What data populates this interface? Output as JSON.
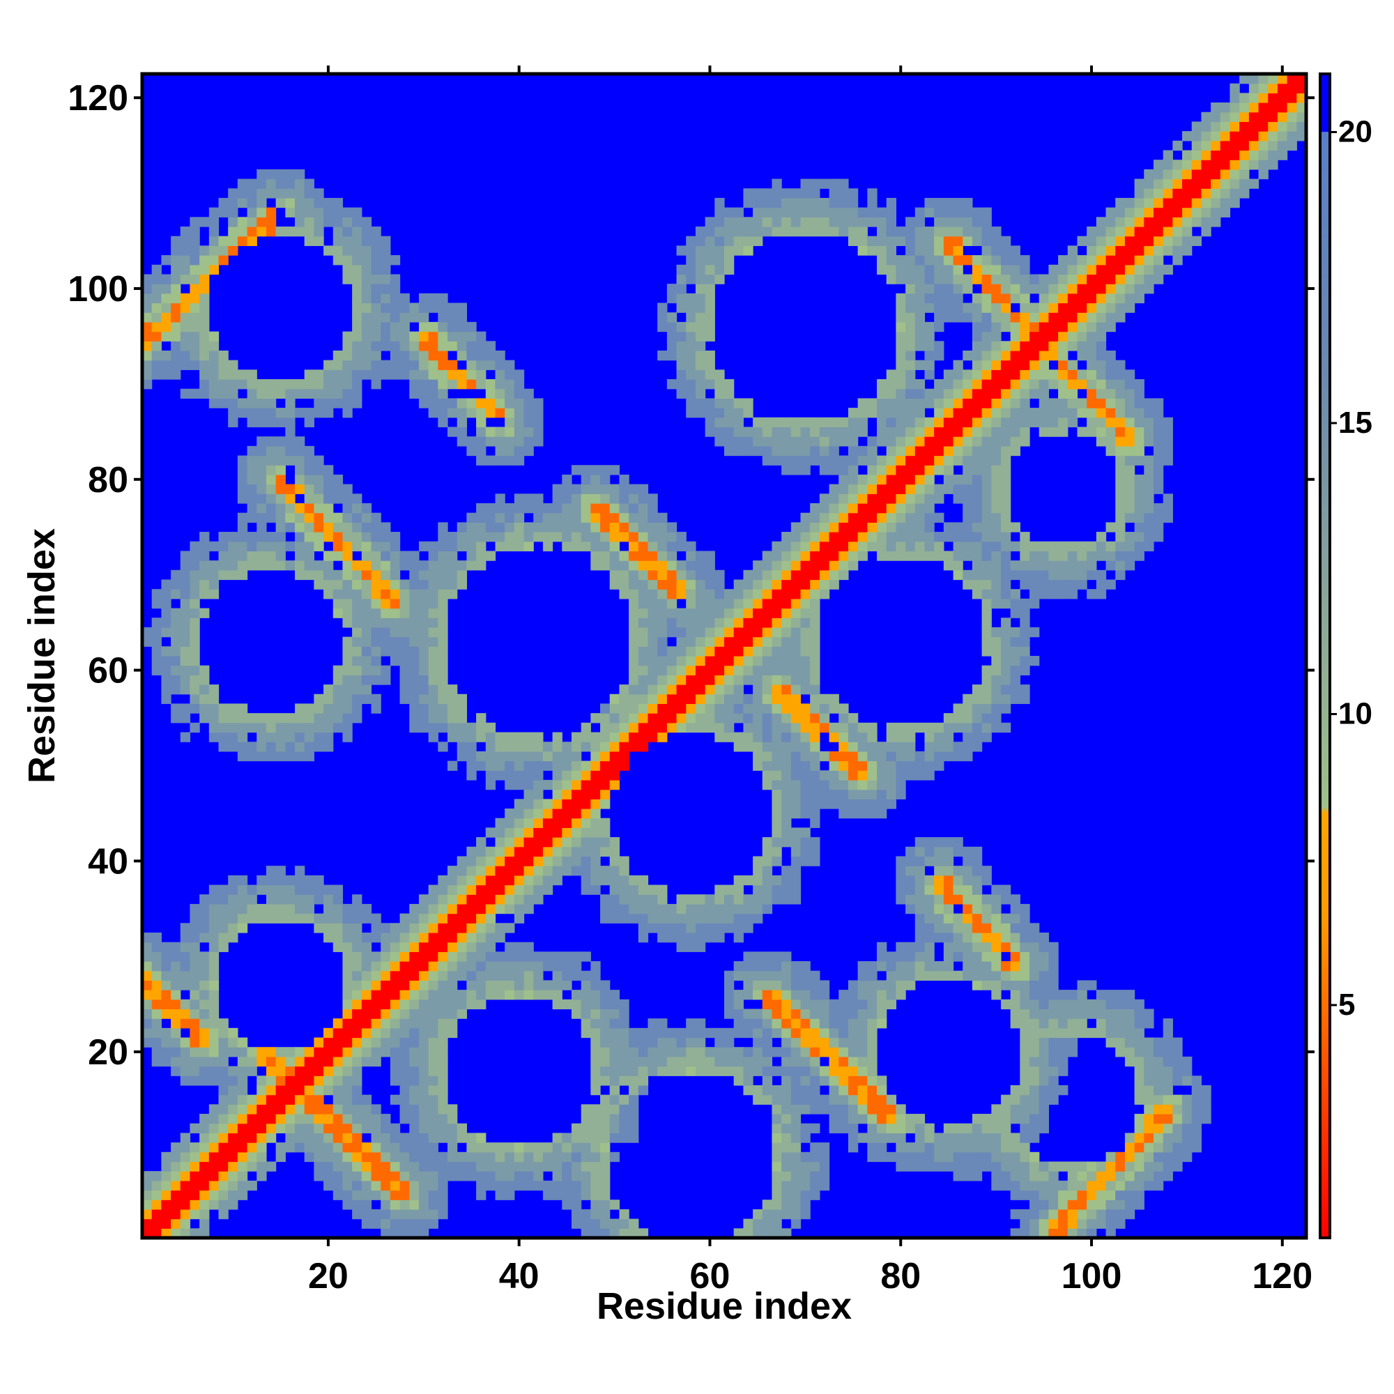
{
  "chart_data": {
    "type": "heatmap",
    "title": "",
    "xlabel": "Residue index",
    "ylabel": "Residue index",
    "xlim": [
      1,
      122
    ],
    "ylim": [
      1,
      122
    ],
    "n_residues": 122,
    "x_ticks": [
      20,
      40,
      60,
      80,
      100,
      120
    ],
    "y_ticks": [
      20,
      40,
      60,
      80,
      100,
      120
    ],
    "colorbar": {
      "range": [
        1,
        21
      ],
      "ticks": [
        5,
        10,
        15,
        20
      ],
      "stops": [
        {
          "value": 1,
          "color": "#ff0000"
        },
        {
          "value": 6.5,
          "color": "#ff9900"
        },
        {
          "value": 8.3,
          "color": "#ffa500"
        },
        {
          "value": 8.4,
          "color": "#9fc08a"
        },
        {
          "value": 12,
          "color": "#8aa59a"
        },
        {
          "value": 16,
          "color": "#6a88b0"
        },
        {
          "value": 20,
          "color": "#5a7fc8"
        },
        {
          "value": 20.01,
          "color": "#0000ff"
        }
      ],
      "background_color": "#0000ff"
    },
    "features": {
      "main_diagonal": {
        "from": [
          1,
          1
        ],
        "to": [
          122,
          122
        ]
      },
      "anti_diagonal_bands": [
        {
          "x": [
            13,
            28
          ],
          "y": [
            20,
            5
          ]
        },
        {
          "x": [
            15,
            27
          ],
          "y": [
            80,
            67
          ]
        },
        {
          "x": [
            30,
            38
          ],
          "y": [
            95,
            86
          ]
        },
        {
          "x": [
            48,
            57
          ],
          "y": [
            77,
            68
          ]
        },
        {
          "x": [
            66,
            79
          ],
          "y": [
            26,
            13
          ]
        },
        {
          "x": [
            67,
            76
          ],
          "y": [
            58,
            49
          ]
        },
        {
          "x": [
            85,
            104
          ],
          "y": [
            105,
            84
          ]
        },
        {
          "x": [
            84,
            92
          ],
          "y": [
            38,
            29
          ]
        },
        {
          "x": [
            0,
            7
          ],
          "y": [
            28,
            21
          ]
        }
      ],
      "parallel_bands": [
        {
          "x": [
            96,
            108
          ],
          "y": [
            1,
            14
          ]
        },
        {
          "x": [
            0,
            15
          ],
          "y": [
            94,
            108
          ]
        }
      ],
      "blue_holes": [
        {
          "x": 14,
          "y": 63,
          "r": 7.5
        },
        {
          "x": 42,
          "y": 63,
          "r": 10
        },
        {
          "x": 80,
          "y": 63,
          "r": 9
        },
        {
          "x": 58,
          "y": 45,
          "r": 8.5
        },
        {
          "x": 15,
          "y": 98,
          "r": 7.5
        },
        {
          "x": 70,
          "y": 96,
          "r": 10
        },
        {
          "x": 97,
          "y": 79,
          "r": 6
        },
        {
          "x": 58,
          "y": 9,
          "r": 9
        },
        {
          "x": 98,
          "y": 15,
          "r": 7
        },
        {
          "x": 85,
          "y": 20,
          "r": 7.5
        },
        {
          "x": 15,
          "y": 27,
          "r": 7
        },
        {
          "x": 40,
          "y": 18,
          "r": 8
        }
      ]
    }
  }
}
